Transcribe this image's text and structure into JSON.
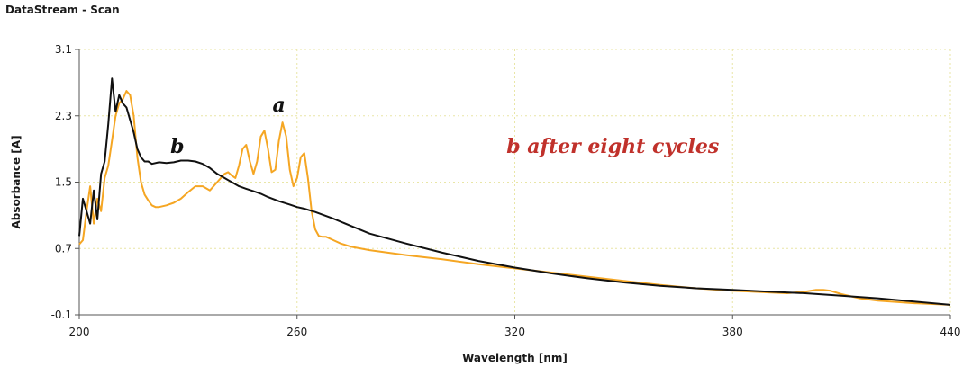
{
  "app_title": "DataStream - Scan",
  "colors": {
    "grid": "#e9e6a6",
    "axis": "#555555",
    "curve_b": "#111111",
    "curve_a": "#f5a623",
    "annotation": "#c0312b"
  },
  "chart_data": {
    "type": "line",
    "title": "DataStream - Scan",
    "xlabel": "Wavelength [nm]",
    "ylabel": "Absorbance [A]",
    "xlim": [
      200,
      440
    ],
    "ylim": [
      -0.1,
      3.1
    ],
    "x_ticks": [
      "200",
      "260",
      "320",
      "380",
      "440"
    ],
    "y_ticks": [
      "-0.1",
      "0.7",
      "1.5",
      "2.3",
      "3.1"
    ],
    "x_tick_values": [
      200,
      260,
      320,
      380,
      440
    ],
    "y_tick_values": [
      -0.1,
      0.7,
      1.5,
      2.3,
      3.1
    ],
    "grid": true,
    "series": [
      {
        "name": "a",
        "color": "#f5a623",
        "x": [
          200,
          201,
          202,
          203,
          204,
          205,
          206,
          207,
          208,
          209,
          210,
          211,
          212,
          213,
          214,
          215,
          216,
          217,
          218,
          219,
          220,
          221,
          222,
          224,
          226,
          228,
          230,
          232,
          234,
          236,
          238,
          240,
          241,
          242,
          243,
          244,
          245,
          246,
          247,
          248,
          249,
          250,
          251,
          252,
          253,
          254,
          255,
          256,
          257,
          258,
          259,
          260,
          261,
          262,
          263,
          264,
          265,
          266,
          267,
          268,
          270,
          272,
          275,
          280,
          290,
          300,
          310,
          320,
          330,
          340,
          350,
          360,
          370,
          380,
          390,
          395,
          400,
          403,
          405,
          407,
          410,
          415,
          420,
          430,
          440
        ],
        "y": [
          0.75,
          0.8,
          1.15,
          1.45,
          1.0,
          1.3,
          1.15,
          1.55,
          1.7,
          2.0,
          2.3,
          2.45,
          2.5,
          2.6,
          2.55,
          2.3,
          1.8,
          1.5,
          1.35,
          1.28,
          1.22,
          1.2,
          1.2,
          1.22,
          1.25,
          1.3,
          1.38,
          1.45,
          1.45,
          1.4,
          1.5,
          1.6,
          1.62,
          1.58,
          1.55,
          1.7,
          1.9,
          1.95,
          1.75,
          1.6,
          1.75,
          2.05,
          2.12,
          1.9,
          1.62,
          1.65,
          2.0,
          2.22,
          2.05,
          1.65,
          1.45,
          1.55,
          1.8,
          1.85,
          1.55,
          1.15,
          0.93,
          0.85,
          0.84,
          0.84,
          0.8,
          0.76,
          0.72,
          0.68,
          0.62,
          0.57,
          0.51,
          0.46,
          0.41,
          0.36,
          0.31,
          0.26,
          0.22,
          0.19,
          0.17,
          0.16,
          0.18,
          0.2,
          0.2,
          0.19,
          0.15,
          0.1,
          0.07,
          0.04,
          0.02
        ]
      },
      {
        "name": "b",
        "color": "#111111",
        "x": [
          200,
          201,
          202,
          203,
          204,
          205,
          206,
          207,
          208,
          209,
          210,
          211,
          212,
          213,
          214,
          215,
          216,
          217,
          218,
          219,
          220,
          222,
          224,
          226,
          228,
          230,
          232,
          234,
          236,
          238,
          240,
          242,
          244,
          246,
          248,
          250,
          252,
          255,
          258,
          260,
          262,
          265,
          270,
          275,
          280,
          290,
          300,
          310,
          320,
          330,
          340,
          350,
          360,
          370,
          380,
          390,
          400,
          410,
          420,
          430,
          440
        ],
        "y": [
          0.85,
          1.3,
          1.15,
          1.0,
          1.4,
          1.05,
          1.6,
          1.75,
          2.2,
          2.75,
          2.35,
          2.55,
          2.45,
          2.4,
          2.25,
          2.1,
          1.9,
          1.8,
          1.75,
          1.75,
          1.72,
          1.74,
          1.73,
          1.74,
          1.76,
          1.76,
          1.75,
          1.72,
          1.67,
          1.6,
          1.55,
          1.5,
          1.45,
          1.42,
          1.39,
          1.36,
          1.32,
          1.27,
          1.23,
          1.2,
          1.18,
          1.14,
          1.06,
          0.97,
          0.88,
          0.76,
          0.65,
          0.55,
          0.47,
          0.4,
          0.34,
          0.29,
          0.25,
          0.22,
          0.2,
          0.18,
          0.16,
          0.13,
          0.1,
          0.06,
          0.02
        ]
      }
    ],
    "annotations": [
      {
        "text": "a",
        "x": 255,
        "y": 2.35
      },
      {
        "text": "b",
        "x": 227,
        "y": 1.85
      },
      {
        "text": "b after eight cycles",
        "x": 347,
        "y": 1.85
      }
    ]
  }
}
